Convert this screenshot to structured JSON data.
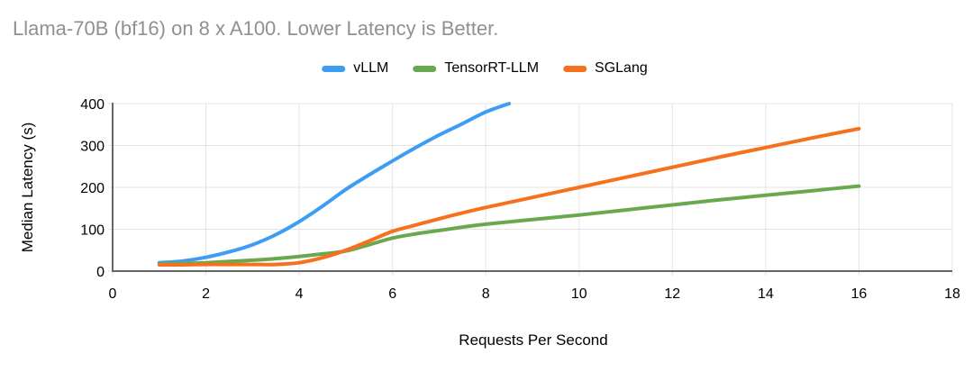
{
  "chart_data": {
    "type": "line",
    "title": "Llama-70B (bf16) on 8 x A100. Lower Latency is Better.",
    "xlabel": "Requests Per Second",
    "ylabel": "Median Latency (s)",
    "xlim": [
      0,
      18
    ],
    "ylim": [
      0,
      400
    ],
    "xticks": [
      0,
      2,
      4,
      6,
      8,
      10,
      12,
      14,
      16,
      18
    ],
    "yticks": [
      0,
      100,
      200,
      300,
      400
    ],
    "grid": true,
    "legend_position": "top-center",
    "title_color": "#909090",
    "axis_color": "#666666",
    "gridline_color": "#e3e3e3",
    "series": [
      {
        "name": "vLLM",
        "color": "#3d9df3",
        "points": [
          [
            1,
            20
          ],
          [
            1.5,
            24
          ],
          [
            2,
            33
          ],
          [
            2.5,
            46
          ],
          [
            3,
            63
          ],
          [
            3.5,
            87
          ],
          [
            4,
            118
          ],
          [
            4.5,
            155
          ],
          [
            5,
            195
          ],
          [
            5.5,
            230
          ],
          [
            6,
            263
          ],
          [
            6.5,
            295
          ],
          [
            7,
            325
          ],
          [
            7.5,
            352
          ],
          [
            8,
            380
          ],
          [
            8.5,
            400
          ]
        ]
      },
      {
        "name": "TensorRT-LLM",
        "color": "#6aa84f",
        "points": [
          [
            1,
            17
          ],
          [
            1.5,
            18
          ],
          [
            2,
            20
          ],
          [
            2.5,
            23
          ],
          [
            3,
            26
          ],
          [
            3.5,
            30
          ],
          [
            4,
            35
          ],
          [
            4.5,
            41
          ],
          [
            5,
            48
          ],
          [
            5.5,
            63
          ],
          [
            6,
            79
          ],
          [
            6.5,
            89
          ],
          [
            7,
            97
          ],
          [
            7.5,
            105
          ],
          [
            8,
            112
          ],
          [
            9,
            123
          ],
          [
            10,
            134
          ],
          [
            11,
            146
          ],
          [
            12,
            158
          ],
          [
            13,
            170
          ],
          [
            14,
            181
          ],
          [
            15,
            192
          ],
          [
            16,
            203
          ]
        ]
      },
      {
        "name": "SGLang",
        "color": "#f6701e",
        "points": [
          [
            1,
            15
          ],
          [
            1.5,
            15
          ],
          [
            2,
            16
          ],
          [
            2.5,
            16
          ],
          [
            3,
            16
          ],
          [
            3.5,
            16
          ],
          [
            4,
            20
          ],
          [
            4.5,
            32
          ],
          [
            5,
            50
          ],
          [
            5.5,
            72
          ],
          [
            6,
            95
          ],
          [
            6.5,
            110
          ],
          [
            7,
            125
          ],
          [
            7.5,
            139
          ],
          [
            8,
            152
          ],
          [
            9,
            176
          ],
          [
            10,
            200
          ],
          [
            11,
            224
          ],
          [
            12,
            248
          ],
          [
            13,
            272
          ],
          [
            14,
            295
          ],
          [
            15,
            318
          ],
          [
            16,
            340
          ]
        ]
      }
    ]
  }
}
